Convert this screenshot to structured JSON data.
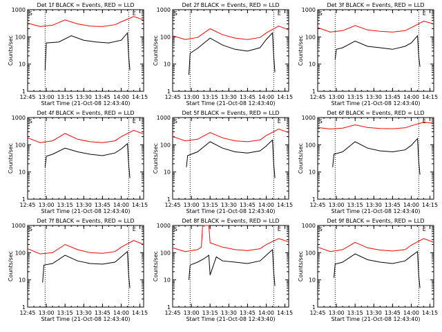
{
  "figure": {
    "background": "#ffffff",
    "events_color": "#000000",
    "lld_color": "#ff0000"
  },
  "chart_data": [
    {
      "type": "line",
      "title": "Det 1f BLACK = Events, RED = LLD",
      "xlabel": "Start Time (21-Oct-08 12:43:40)",
      "ylabel": "Counts/sec",
      "yscale": "log",
      "ylim": [
        1,
        1000
      ],
      "xlim": [
        "12:45",
        "14:18"
      ],
      "x_ticks": [
        "12:45",
        "13:00",
        "13:15",
        "13:30",
        "13:45",
        "14:00",
        "14:15"
      ],
      "y_ticks": [
        "1",
        "10",
        "100",
        "1000"
      ],
      "markers": [
        {
          "label": "S",
          "x": "12:46"
        },
        {
          "label": "E",
          "x": "14:09"
        }
      ],
      "vlines": [
        "12:59",
        "14:06"
      ],
      "series": [
        {
          "name": "Events",
          "color": "#000000",
          "x": [
            "12:59",
            "13:00",
            "13:10",
            "13:20",
            "13:30",
            "13:40",
            "13:50",
            "14:00",
            "14:05",
            "14:06",
            "14:07"
          ],
          "y": [
            6,
            60,
            65,
            110,
            75,
            65,
            60,
            75,
            140,
            20,
            6
          ]
        },
        {
          "name": "LLD",
          "color": "#ff0000",
          "x": [
            "12:45",
            "12:55",
            "13:05",
            "13:15",
            "13:25",
            "13:35",
            "13:45",
            "13:55",
            "14:00",
            "14:10",
            "14:18"
          ],
          "y": [
            320,
            240,
            270,
            420,
            300,
            250,
            240,
            280,
            360,
            560,
            420
          ]
        }
      ]
    },
    {
      "type": "line",
      "title": "Det 2f BLACK = Events, RED = LLD",
      "xlabel": "Start Time (21-Oct-08 12:43:40)",
      "ylabel": "Counts/sec",
      "yscale": "log",
      "ylim": [
        1,
        1000
      ],
      "xlim": [
        "12:45",
        "14:18"
      ],
      "x_ticks": [
        "12:45",
        "13:00",
        "13:15",
        "13:30",
        "13:45",
        "14:00",
        "14:15"
      ],
      "y_ticks": [
        "1",
        "10",
        "100",
        "1000"
      ],
      "markers": [
        {
          "label": "S",
          "x": "12:46"
        },
        {
          "label": "E",
          "x": "14:09"
        }
      ],
      "vlines": [
        "12:59",
        "14:06"
      ],
      "series": [
        {
          "name": "Events",
          "color": "#000000",
          "x": [
            "12:58",
            "12:59",
            "13:05",
            "13:15",
            "13:25",
            "13:35",
            "13:45",
            "13:55",
            "14:00",
            "14:05",
            "14:06",
            "14:07"
          ],
          "y": [
            4,
            25,
            38,
            90,
            50,
            35,
            30,
            40,
            80,
            140,
            20,
            5
          ]
        },
        {
          "name": "LLD",
          "color": "#ff0000",
          "x": [
            "12:45",
            "12:55",
            "13:05",
            "13:15",
            "13:25",
            "13:35",
            "13:45",
            "13:55",
            "14:00",
            "14:10",
            "14:18"
          ],
          "y": [
            110,
            80,
            95,
            200,
            120,
            90,
            80,
            95,
            140,
            250,
            180
          ]
        }
      ]
    },
    {
      "type": "line",
      "title": "Det 3f BLACK = Events, RED = LLD",
      "xlabel": "Start Time (21-Oct-08 12:43:40)",
      "ylabel": "Counts/sec",
      "yscale": "log",
      "ylim": [
        1,
        1000
      ],
      "xlim": [
        "12:45",
        "14:18"
      ],
      "x_ticks": [
        "12:45",
        "13:00",
        "13:15",
        "13:30",
        "13:45",
        "14:00",
        "14:15"
      ],
      "y_ticks": [
        "1",
        "10",
        "100",
        "1000"
      ],
      "markers": [
        {
          "label": "S",
          "x": "12:46"
        },
        {
          "label": "E",
          "x": "14:09"
        }
      ],
      "vlines": [
        "12:59",
        "14:06"
      ],
      "series": [
        {
          "name": "Events",
          "color": "#000000",
          "x": [
            "12:59",
            "13:00",
            "13:05",
            "13:15",
            "13:25",
            "13:35",
            "13:45",
            "13:55",
            "14:00",
            "14:05",
            "14:06",
            "14:07"
          ],
          "y": [
            15,
            35,
            40,
            70,
            45,
            40,
            35,
            45,
            60,
            110,
            20,
            8
          ]
        },
        {
          "name": "LLD",
          "color": "#ff0000",
          "x": [
            "12:45",
            "12:55",
            "13:05",
            "13:15",
            "13:25",
            "13:35",
            "13:45",
            "13:55",
            "14:00",
            "14:10",
            "14:18"
          ],
          "y": [
            220,
            150,
            170,
            260,
            180,
            160,
            150,
            170,
            220,
            380,
            300
          ]
        }
      ]
    },
    {
      "type": "line",
      "title": "Det 4f BLACK = Events, RED = LLD",
      "xlabel": "Start Time (21-Oct-08 12:43:40)",
      "ylabel": "Counts/sec",
      "yscale": "log",
      "ylim": [
        1,
        1000
      ],
      "xlim": [
        "12:45",
        "14:18"
      ],
      "x_ticks": [
        "12:45",
        "13:00",
        "13:15",
        "13:30",
        "13:45",
        "14:00",
        "14:15"
      ],
      "y_ticks": [
        "1",
        "10",
        "100",
        "1000"
      ],
      "markers": [
        {
          "label": "S",
          "x": "12:46"
        },
        {
          "label": "E",
          "x": "14:09"
        }
      ],
      "vlines": [
        "12:59",
        "14:06"
      ],
      "series": [
        {
          "name": "Events",
          "color": "#000000",
          "x": [
            "12:59",
            "13:00",
            "13:05",
            "13:15",
            "13:25",
            "13:35",
            "13:45",
            "13:55",
            "14:00",
            "14:05",
            "14:06",
            "14:07"
          ],
          "y": [
            15,
            38,
            45,
            75,
            55,
            45,
            40,
            50,
            70,
            110,
            20,
            6
          ]
        },
        {
          "name": "LLD",
          "color": "#ff0000",
          "x": [
            "12:45",
            "12:55",
            "13:05",
            "13:15",
            "13:25",
            "13:35",
            "13:45",
            "13:55",
            "14:00",
            "14:10",
            "14:18"
          ],
          "y": [
            180,
            120,
            140,
            260,
            160,
            130,
            120,
            140,
            200,
            340,
            250
          ]
        }
      ]
    },
    {
      "type": "line",
      "title": "Det 5f BLACK = Events, RED = LLD",
      "xlabel": "Start Time (21-Oct-08 12:43:40)",
      "ylabel": "Counts/sec",
      "yscale": "log",
      "ylim": [
        1,
        1000
      ],
      "xlim": [
        "12:45",
        "14:18"
      ],
      "x_ticks": [
        "12:45",
        "13:00",
        "13:15",
        "13:30",
        "13:45",
        "14:00",
        "14:15"
      ],
      "y_ticks": [
        "1",
        "10",
        "100",
        "1000"
      ],
      "markers": [
        {
          "label": "S",
          "x": "12:46"
        },
        {
          "label": "E",
          "x": "14:09"
        }
      ],
      "vlines": [
        "12:59",
        "14:06"
      ],
      "series": [
        {
          "name": "Events",
          "color": "#000000",
          "x": [
            "12:56",
            "12:57",
            "13:05",
            "13:15",
            "13:25",
            "13:35",
            "13:45",
            "13:55",
            "14:00",
            "14:05",
            "14:06",
            "14:07"
          ],
          "y": [
            15,
            40,
            55,
            130,
            75,
            55,
            50,
            60,
            90,
            150,
            20,
            6
          ]
        },
        {
          "name": "LLD",
          "color": "#ff0000",
          "x": [
            "12:45",
            "12:55",
            "13:05",
            "13:15",
            "13:25",
            "13:35",
            "13:45",
            "13:55",
            "14:00",
            "14:10",
            "14:18"
          ],
          "y": [
            200,
            140,
            160,
            280,
            180,
            140,
            130,
            150,
            220,
            380,
            280
          ]
        }
      ]
    },
    {
      "type": "line",
      "title": "Det 6f BLACK = Events, RED = LLD",
      "xlabel": "Start Time (21-Oct-08 12:43:40)",
      "ylabel": "Counts/sec",
      "yscale": "log",
      "ylim": [
        1,
        1000
      ],
      "xlim": [
        "12:45",
        "14:18"
      ],
      "x_ticks": [
        "12:45",
        "13:00",
        "13:15",
        "13:30",
        "13:45",
        "14:00",
        "14:15"
      ],
      "y_ticks": [
        "1",
        "10",
        "100",
        "1000"
      ],
      "markers": [
        {
          "label": "S",
          "x": "12:46"
        },
        {
          "label": "E",
          "x": "14:09"
        }
      ],
      "vlines": [
        "12:59",
        "14:06"
      ],
      "series": [
        {
          "name": "Events",
          "color": "#000000",
          "x": [
            "12:57",
            "12:58",
            "13:05",
            "13:15",
            "13:25",
            "13:35",
            "13:45",
            "13:55",
            "14:00",
            "14:05",
            "14:06",
            "14:07"
          ],
          "y": [
            15,
            45,
            55,
            130,
            75,
            60,
            55,
            65,
            95,
            170,
            25,
            8
          ]
        },
        {
          "name": "LLD",
          "color": "#ff0000",
          "x": [
            "12:45",
            "12:55",
            "13:05",
            "13:15",
            "13:25",
            "13:35",
            "13:45",
            "13:55",
            "14:00",
            "14:10",
            "14:18"
          ],
          "y": [
            430,
            380,
            410,
            540,
            430,
            400,
            390,
            420,
            500,
            680,
            620
          ]
        }
      ]
    },
    {
      "type": "line",
      "title": "Det 7f BLACK = Events, RED = LLD",
      "xlabel": "Start Time (21-Oct-08 12:43:40)",
      "ylabel": "Counts/sec",
      "yscale": "log",
      "ylim": [
        1,
        1000
      ],
      "xlim": [
        "12:45",
        "14:18"
      ],
      "x_ticks": [
        "12:45",
        "13:00",
        "13:15",
        "13:30",
        "13:45",
        "14:00",
        "14:15"
      ],
      "y_ticks": [
        "1",
        "10",
        "100",
        "1000"
      ],
      "markers": [
        {
          "label": "S",
          "x": "12:46"
        },
        {
          "label": "E",
          "x": "14:09"
        }
      ],
      "vlines": [
        "12:59",
        "14:06"
      ],
      "series": [
        {
          "name": "Events",
          "color": "#000000",
          "x": [
            "12:57",
            "12:58",
            "13:05",
            "13:15",
            "13:25",
            "13:35",
            "13:45",
            "13:55",
            "14:00",
            "14:05",
            "14:06",
            "14:07"
          ],
          "y": [
            8,
            35,
            40,
            80,
            50,
            40,
            38,
            45,
            70,
            110,
            15,
            5
          ]
        },
        {
          "name": "LLD",
          "color": "#ff0000",
          "x": [
            "12:45",
            "12:55",
            "13:05",
            "13:15",
            "13:25",
            "13:35",
            "13:45",
            "13:55",
            "14:00",
            "14:10",
            "14:18"
          ],
          "y": [
            140,
            90,
            100,
            200,
            130,
            100,
            95,
            110,
            160,
            280,
            200
          ]
        }
      ]
    },
    {
      "type": "line",
      "title": "Det 8f BLACK = Events, RED = LLD",
      "xlabel": "Start Time (21-Oct-08 12:43:40)",
      "ylabel": "Counts/sec",
      "yscale": "log",
      "ylim": [
        1,
        1000
      ],
      "xlim": [
        "12:45",
        "14:18"
      ],
      "x_ticks": [
        "12:45",
        "13:00",
        "13:15",
        "13:30",
        "13:45",
        "14:00",
        "14:15"
      ],
      "y_ticks": [
        "1",
        "10",
        "100",
        "1000"
      ],
      "markers": [
        {
          "label": "S",
          "x": "12:46"
        },
        {
          "label": "E",
          "x": "14:09"
        }
      ],
      "vlines": [
        "12:59",
        "14:06"
      ],
      "series": [
        {
          "name": "Events",
          "color": "#000000",
          "x": [
            "12:58",
            "12:59",
            "13:05",
            "13:10",
            "13:14",
            "13:15",
            "13:20",
            "13:25",
            "13:35",
            "13:45",
            "13:55",
            "14:00",
            "14:05",
            "14:06",
            "14:07"
          ],
          "y": [
            10,
            35,
            45,
            60,
            80,
            15,
            70,
            50,
            45,
            40,
            50,
            80,
            130,
            20,
            6
          ]
        },
        {
          "name": "LLD",
          "color": "#ff0000",
          "x": [
            "12:45",
            "12:55",
            "13:05",
            "13:08",
            "13:09",
            "13:10",
            "13:13",
            "13:14",
            "13:15",
            "13:25",
            "13:35",
            "13:45",
            "13:55",
            "14:00",
            "14:10",
            "14:18"
          ],
          "y": [
            150,
            110,
            130,
            160,
            1000,
            1000,
            1000,
            1000,
            230,
            160,
            130,
            120,
            140,
            200,
            330,
            250
          ]
        }
      ]
    },
    {
      "type": "line",
      "title": "Det 9f BLACK = Events, RED = LLD",
      "xlabel": "Start Time (21-Oct-08 12:43:40)",
      "ylabel": "Counts/sec",
      "yscale": "log",
      "ylim": [
        1,
        1000
      ],
      "xlim": [
        "12:45",
        "14:18"
      ],
      "x_ticks": [
        "12:45",
        "13:00",
        "13:15",
        "13:30",
        "13:45",
        "14:00",
        "14:15"
      ],
      "y_ticks": [
        "1",
        "10",
        "100",
        "1000"
      ],
      "markers": [
        {
          "label": "S",
          "x": "12:46"
        },
        {
          "label": "E",
          "x": "14:09"
        }
      ],
      "vlines": [
        "12:59",
        "14:06"
      ],
      "series": [
        {
          "name": "Events",
          "color": "#000000",
          "x": [
            "12:58",
            "12:59",
            "13:05",
            "13:15",
            "13:25",
            "13:35",
            "13:45",
            "13:55",
            "14:00",
            "14:05",
            "14:06",
            "14:07"
          ],
          "y": [
            12,
            38,
            45,
            90,
            55,
            45,
            40,
            50,
            75,
            110,
            15,
            5
          ]
        },
        {
          "name": "LLD",
          "color": "#ff0000",
          "x": [
            "12:45",
            "12:55",
            "13:05",
            "13:15",
            "13:25",
            "13:35",
            "13:45",
            "13:55",
            "14:00",
            "14:10",
            "14:18"
          ],
          "y": [
            160,
            110,
            130,
            240,
            150,
            125,
            115,
            130,
            190,
            330,
            240
          ]
        }
      ]
    }
  ]
}
